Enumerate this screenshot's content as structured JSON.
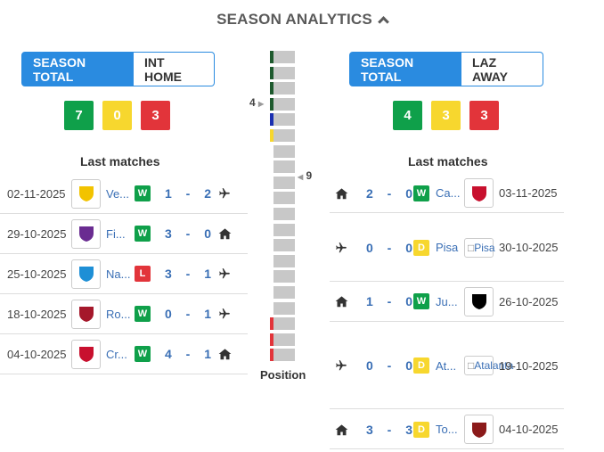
{
  "header": {
    "title": "SEASON ANALYTICS"
  },
  "colors": {
    "win": "#0fa04a",
    "draw": "#f7d72e",
    "loss": "#e2343a",
    "accent": "#2a8be0",
    "link": "#3a6fb5"
  },
  "left": {
    "tabs": [
      "SEASON TOTAL",
      "INT HOME"
    ],
    "stats": {
      "wins": "7",
      "draws": "0",
      "losses": "3"
    },
    "last_matches_title": "Last matches",
    "matches": [
      {
        "date": "02-11-2025",
        "team": "Ve...",
        "result": "W",
        "score": "1 - 2",
        "venue": "plane-icon",
        "logo_color": "#f2c300"
      },
      {
        "date": "29-10-2025",
        "team": "Fi...",
        "result": "W",
        "score": "3 - 0",
        "venue": "home-icon",
        "logo_color": "#6a2c91"
      },
      {
        "date": "25-10-2025",
        "team": "Na...",
        "result": "L",
        "score": "3 - 1",
        "venue": "plane-icon",
        "logo_color": "#1e8fd6"
      },
      {
        "date": "18-10-2025",
        "team": "Ro...",
        "result": "W",
        "score": "0 - 1",
        "venue": "plane-icon",
        "logo_color": "#a5182b"
      },
      {
        "date": "04-10-2025",
        "team": "Cr...",
        "result": "W",
        "score": "4 - 1",
        "venue": "home-icon",
        "logo_color": "#c8102e"
      }
    ]
  },
  "right": {
    "tabs": [
      "SEASON TOTAL",
      "LAZ AWAY"
    ],
    "stats": {
      "wins": "4",
      "draws": "3",
      "losses": "3"
    },
    "last_matches_title": "Last matches",
    "matches": [
      {
        "date": "03-11-2025",
        "team": "Ca...",
        "result": "W",
        "score": "2 - 0",
        "venue": "home-icon",
        "logo_color": "#c8102e"
      },
      {
        "date": "30-10-2025",
        "team": "Pisa",
        "result": "D",
        "score": "0 - 0",
        "venue": "plane-icon",
        "broken_alt": "Pisa"
      },
      {
        "date": "26-10-2025",
        "team": "Ju...",
        "result": "W",
        "score": "1 - 0",
        "venue": "home-icon",
        "logo_color": "#000000"
      },
      {
        "date": "19-10-2025",
        "team": "At...",
        "result": "D",
        "score": "0 - 0",
        "venue": "plane-icon",
        "broken_alt": "Atalanta"
      },
      {
        "date": "04-10-2025",
        "team": "To...",
        "result": "D",
        "score": "3 - 3",
        "venue": "home-icon",
        "logo_color": "#8b1a1a"
      }
    ]
  },
  "position": {
    "title": "Position",
    "left_value": "4",
    "right_value": "9",
    "total_positions": 20,
    "marks": [
      {
        "position": 1,
        "color": "#1e5a2e"
      },
      {
        "position": 2,
        "color": "#1e5a2e"
      },
      {
        "position": 3,
        "color": "#1e5a2e"
      },
      {
        "position": 4,
        "color": "#1e5a2e"
      },
      {
        "position": 5,
        "color": "#1a2fb0"
      },
      {
        "position": 6,
        "color": "#f7d72e"
      },
      {
        "position": 18,
        "color": "#e2343a"
      },
      {
        "position": 19,
        "color": "#e2343a"
      },
      {
        "position": 20,
        "color": "#e2343a"
      }
    ]
  }
}
